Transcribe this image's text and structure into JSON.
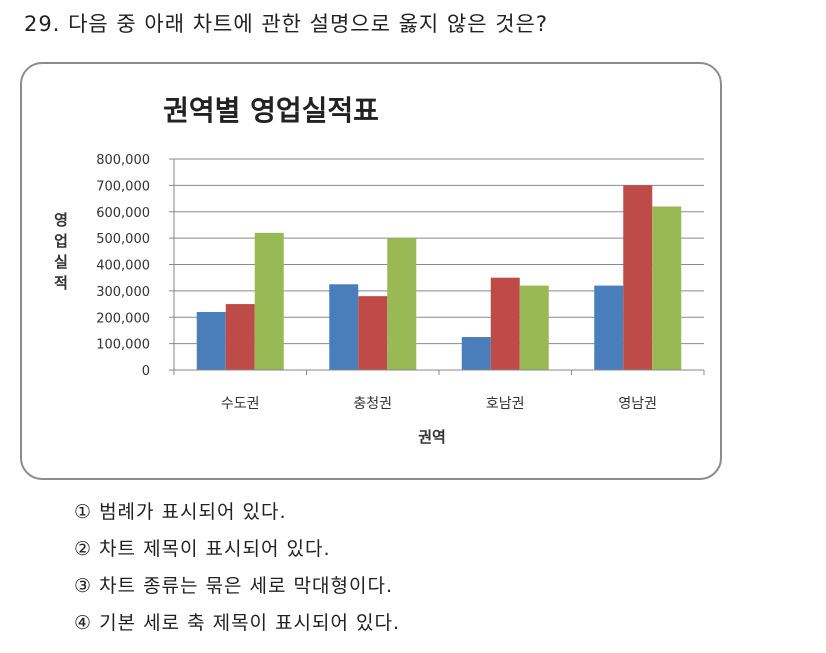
{
  "question": "29. 다음 중 아래 차트에 관한 설명으로 옳지 않은 것은?",
  "chart_data": {
    "type": "bar",
    "title": "권역별 영업실적표",
    "xlabel": "권역",
    "ylabel": "영업실적",
    "categories": [
      "수도권",
      "충청권",
      "호남권",
      "영남권"
    ],
    "series": [
      {
        "values": [
          220000,
          325000,
          125000,
          320000
        ],
        "color": "#4a7ebb"
      },
      {
        "values": [
          250000,
          280000,
          350000,
          700000
        ],
        "color": "#be4b48"
      },
      {
        "values": [
          520000,
          500000,
          320000,
          620000
        ],
        "color": "#98b954"
      }
    ],
    "ylim": [
      0,
      800000
    ],
    "yticks": [
      "0",
      "100,000",
      "200,000",
      "300,000",
      "400,000",
      "500,000",
      "600,000",
      "700,000",
      "800,000"
    ],
    "grid": true,
    "legend": "none"
  },
  "choices": [
    "① 범례가 표시되어 있다.",
    "② 차트 제목이 표시되어 있다.",
    "③ 차트 종류는 묶은 세로 막대형이다.",
    "④ 기본 세로 축 제목이 표시되어 있다."
  ]
}
